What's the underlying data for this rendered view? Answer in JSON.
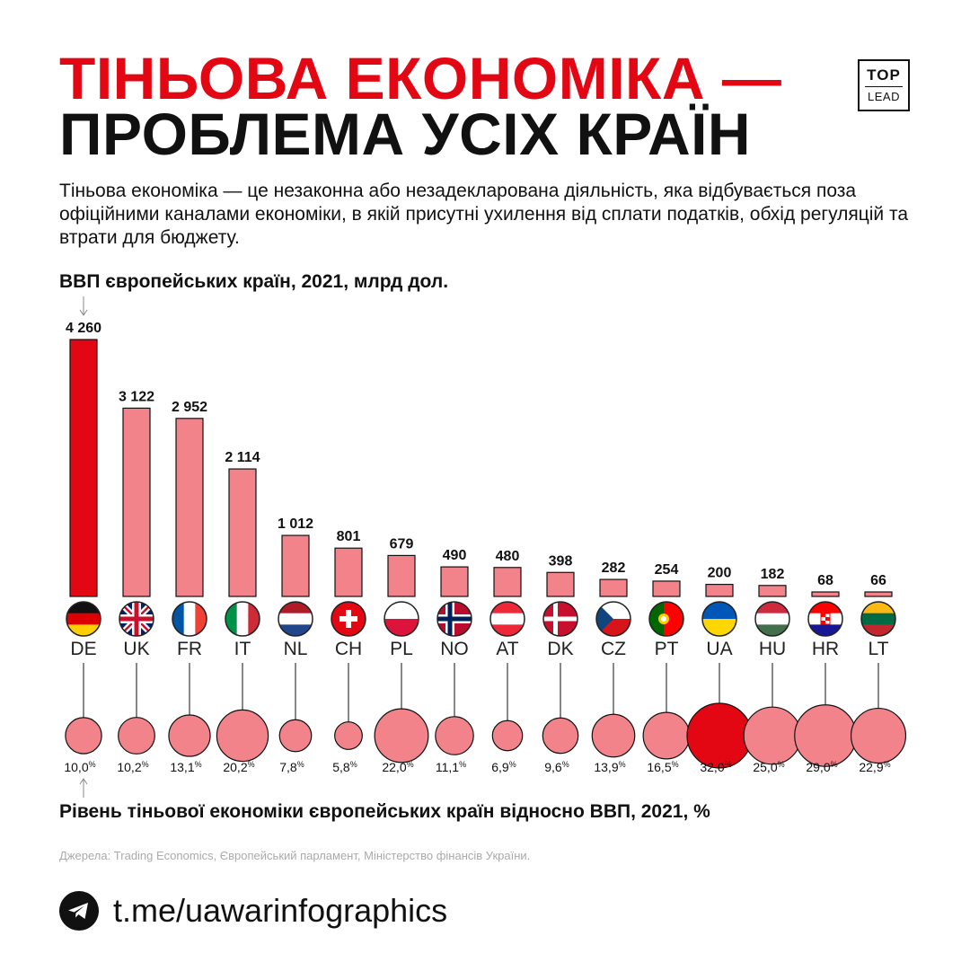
{
  "header": {
    "title_line1": "ТІНЬОВА ЕКОНОМІКА —",
    "title_line2": "ПРОБЛЕМА УСІХ КРАЇН",
    "logo_top": "TOP",
    "logo_bottom": "LEAD"
  },
  "intro": "Тіньова економіка — це незаконна або незадекларована діяльність, яка відбувається поза офіційними каналами економіки, в якій присутні ухилення від сплати податків, обхід регуляцій та втрати для бюджету.",
  "colors": {
    "accent": "#e30613",
    "bar": "#f2838a",
    "dark": "#111111"
  },
  "chart_data": {
    "type": "bar",
    "title": "ВВП європейських країн, 2021, млрд дол.",
    "secondary_title": "Рівень тіньової економіки європейських країн відносно ВВП, 2021, %",
    "categories": [
      "DE",
      "UK",
      "FR",
      "IT",
      "NL",
      "CH",
      "PL",
      "NO",
      "AT",
      "DK",
      "CZ",
      "PT",
      "UA",
      "HU",
      "HR",
      "LT"
    ],
    "gdp_labels": [
      "4 260",
      "3 122",
      "2 952",
      "2 114",
      "1 012",
      "801",
      "679",
      "490",
      "480",
      "398",
      "282",
      "254",
      "200",
      "182",
      "68",
      "66"
    ],
    "gdp_values": [
      4260,
      3122,
      2952,
      2114,
      1012,
      801,
      679,
      490,
      480,
      398,
      282,
      254,
      200,
      182,
      68,
      66
    ],
    "shadow_labels": [
      "10,0",
      "10,2",
      "13,1",
      "20,2",
      "7,8",
      "5,8",
      "22,0",
      "11,1",
      "6,9",
      "9,6",
      "13,9",
      "16,5",
      "32,0",
      "25,0",
      "29,0",
      "22,9"
    ],
    "shadow_values": [
      10.0,
      10.2,
      13.1,
      20.2,
      7.8,
      5.8,
      22.0,
      11.1,
      6.9,
      9.6,
      13.9,
      16.5,
      32.0,
      25.0,
      29.0,
      22.9
    ],
    "percent_sign": "%",
    "highlight_gdp": "DE",
    "highlight_shadow": "UA"
  },
  "footer": {
    "sources": "Джерела: Trading Economics, Європейський парламент, Міністерство фінансів України.",
    "link": "t.me/uawarinfographics",
    "telegram_icon": "telegram-icon"
  }
}
